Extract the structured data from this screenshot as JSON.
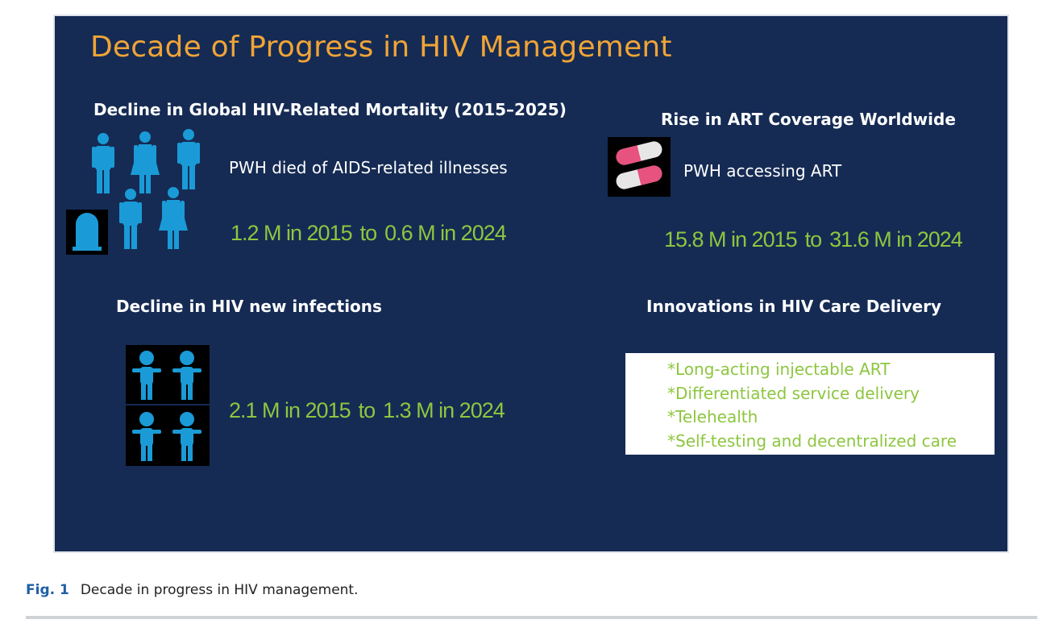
{
  "title": "Decade of Progress in HIV Management",
  "mortality": {
    "heading": "Decline in Global HIV-Related Mortality (2015–2025)",
    "subtext": "PWH died of AIDS-related illnesses",
    "from": "1.2 M in 2015",
    "connector": "to",
    "to": "0.6 M in 2024"
  },
  "art": {
    "heading": "Rise in ART Coverage Worldwide",
    "subtext": "PWH accessing ART",
    "from": "15.8 M in 2015",
    "connector": "to",
    "to": "31.6 M in 2024"
  },
  "infections": {
    "heading": "Decline in HIV new infections",
    "from": "2.1 M in 2015",
    "connector": "to",
    "to": "1.3 M in 2024"
  },
  "innovations": {
    "heading": "Innovations in HIV Care Delivery",
    "items": [
      "*Long-acting injectable ART",
      "*Differentiated service delivery",
      "*Telehealth",
      "*Self-testing and decentralized care"
    ]
  },
  "caption": {
    "label": "Fig. 1",
    "text": "Decade in progress in HIV management."
  },
  "colors": {
    "panel_bg": "#152b54",
    "title": "#f0a437",
    "stat_green": "#8dc63f",
    "icon_blue": "#1a9bd7",
    "pill_pink": "#e8527e",
    "caption_blue": "#1f5fa6"
  },
  "icons": [
    "person-male-icon",
    "person-female-icon",
    "tombstone-icon",
    "pill-capsule-icon",
    "child-icon"
  ]
}
